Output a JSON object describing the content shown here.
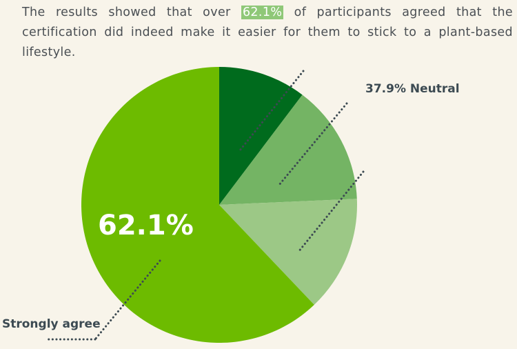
{
  "intro": {
    "before": "The results showed that over ",
    "highlight": "62.1%",
    "after": " of participants agreed that the certification did indeed make it easier for them to stick to a plant-based lifestyle."
  },
  "colors": {
    "background": "#f8f4ea",
    "highlight": "#8fc878",
    "slice_dark": "#006b1d",
    "slice_mid": "#74b464",
    "slice_light": "#9cc886",
    "slice_main": "#6dbb00",
    "label_text": "#3c4a52"
  },
  "chart_data": {
    "type": "pie",
    "start_angle_deg": 0,
    "direction": "clockwise",
    "slices": [
      {
        "label": "",
        "value": 10.3,
        "color": "#006b1d"
      },
      {
        "label": "",
        "value": 14.0,
        "color": "#74b464"
      },
      {
        "label": "",
        "value": 13.6,
        "color": "#9cc886"
      },
      {
        "label": "Strongly agree",
        "value": 62.1,
        "color": "#6dbb00"
      }
    ],
    "annotations": {
      "neutral_group": "37.9% Neutral",
      "main_value": "62.1%",
      "main_label": "Strongly agree"
    }
  }
}
